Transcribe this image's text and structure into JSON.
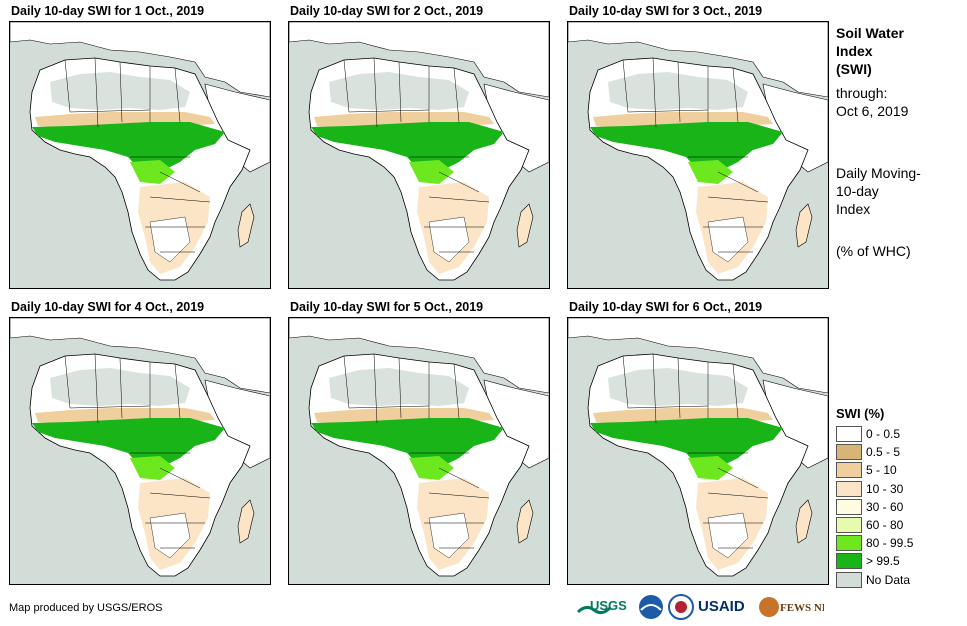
{
  "panels": [
    {
      "title": "Daily 10-day SWI for 1 Oct., 2019"
    },
    {
      "title": "Daily 10-day SWI for 2 Oct., 2019"
    },
    {
      "title": "Daily 10-day SWI for 3 Oct., 2019"
    },
    {
      "title": "Daily 10-day SWI for 4 Oct., 2019"
    },
    {
      "title": "Daily 10-day SWI for 5 Oct., 2019"
    },
    {
      "title": "Daily 10-day SWI for 6 Oct., 2019"
    }
  ],
  "side": {
    "title_line1": "Soil Water",
    "title_line2": "Index",
    "title_line3": "(SWI)",
    "through": "through:",
    "date": "Oct 6, 2019",
    "desc_line1": "Daily Moving-",
    "desc_line2": "10-day",
    "desc_line3": "Index",
    "units": "(% of WHC)"
  },
  "legend": {
    "title": "SWI (%)",
    "items": [
      {
        "label": "0 - 0.5",
        "color": "#ffffff"
      },
      {
        "label": "0.5 - 5",
        "color": "#d9b477"
      },
      {
        "label": "5 - 10",
        "color": "#f0cf9e"
      },
      {
        "label": "10 - 30",
        "color": "#fbe5c6"
      },
      {
        "label": "30 - 60",
        "color": "#fefce0"
      },
      {
        "label": "60 - 80",
        "color": "#e6fbb0"
      },
      {
        "label": "80 - 99.5",
        "color": "#6ee81e"
      },
      {
        "label": "> 99.5",
        "color": "#18b418"
      },
      {
        "label": "No Data",
        "color": "#d3ddd8"
      }
    ]
  },
  "credit": "Map produced by USGS/EROS",
  "logos": {
    "usgs": "USGS",
    "usaid": "USAID",
    "fewsnet": "FEWS NET"
  },
  "colors": {
    "ocean": "#d3ddd8",
    "land_dry": "#ffffff",
    "desert_nodata": "#d3ddd8",
    "tan": "#f0cf9e",
    "wet": "#18b418",
    "moist": "#6ee81e"
  }
}
